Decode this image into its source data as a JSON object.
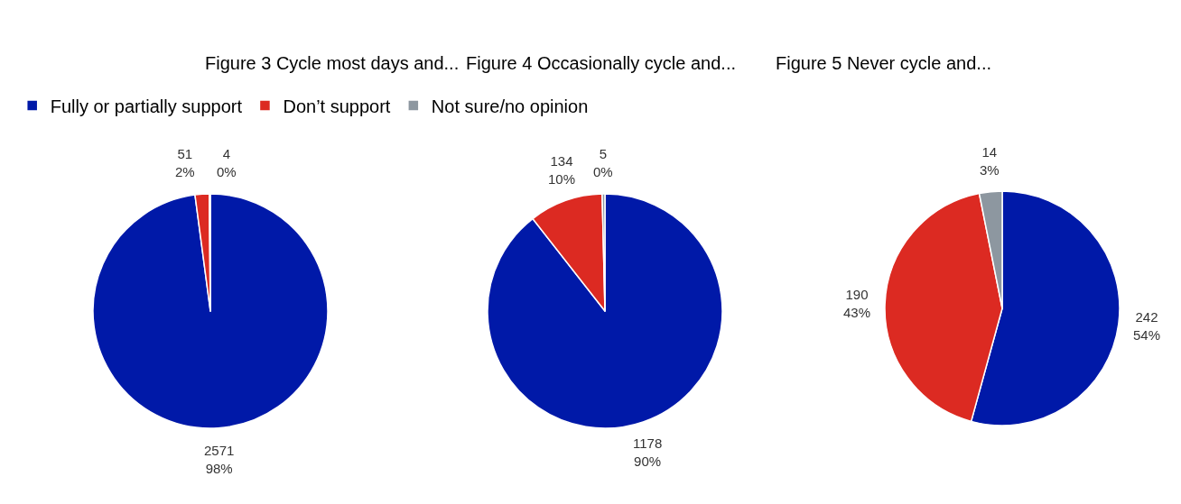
{
  "chart_data": [
    {
      "type": "pie",
      "title": "Figure 3 Cycle most days and...",
      "categories": [
        "Fully or partially support",
        "Don’t support",
        "Not sure/no opinion"
      ],
      "values": [
        2571,
        51,
        4
      ],
      "colors": [
        "#0019a8",
        "#dc2a22",
        "#8d97a0"
      ],
      "value_labels": [
        "2571\n98%",
        "51\n2%",
        "4\n0%"
      ],
      "legend": "top"
    },
    {
      "type": "pie",
      "title": "Figure 4 Occasionally cycle and...",
      "values": [
        1178,
        134,
        5
      ],
      "colors": [
        "#0019a8",
        "#dc2a22",
        "#8d97a0"
      ],
      "value_labels": [
        "1178\n90%",
        "134\n10%",
        "5\n0%"
      ]
    },
    {
      "type": "pie",
      "title": "Figure 5 Never cycle and...",
      "values": [
        242,
        190,
        14
      ],
      "colors": [
        "#0019a8",
        "#dc2a22",
        "#8d97a0"
      ],
      "value_labels": [
        "242\n54%",
        "190\n43%",
        "14\n3%"
      ]
    }
  ]
}
